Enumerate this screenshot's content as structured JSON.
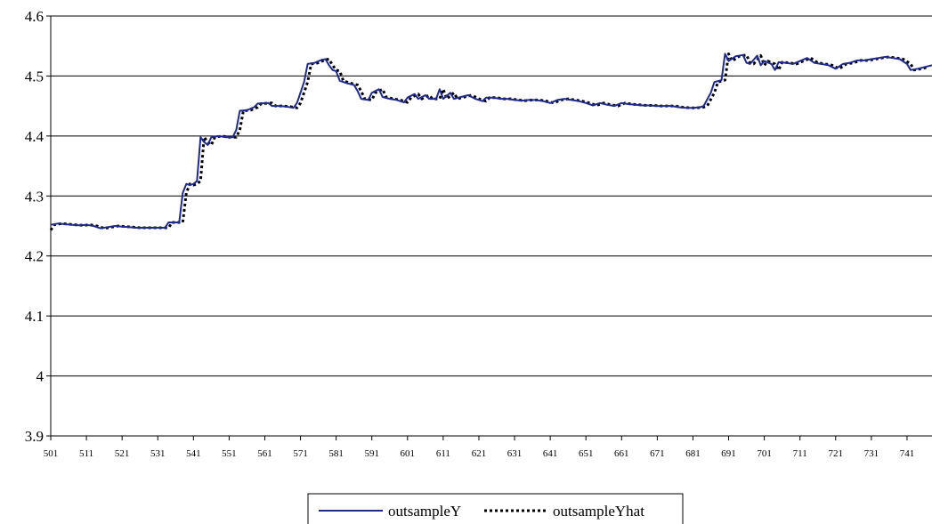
{
  "chart_data": {
    "type": "line",
    "title": "",
    "xlabel": "",
    "ylabel": "",
    "xlim": [
      501,
      748
    ],
    "ylim": [
      3.9,
      4.6
    ],
    "y_ticks": [
      "3.9",
      "4",
      "4.1",
      "4.2",
      "4.3",
      "4.4",
      "4.5",
      "4.6"
    ],
    "x_tick_labels": [
      "501",
      "511",
      "521",
      "531",
      "541",
      "551",
      "561",
      "571",
      "581",
      "591",
      "601",
      "611",
      "621",
      "631",
      "641",
      "651",
      "661",
      "671",
      "681",
      "691",
      "701",
      "711",
      "721",
      "731",
      "741"
    ],
    "grid": "horizontal",
    "legend_position": "bottom",
    "colors": {
      "outsampleY": "#1f2a8c",
      "outsampleYhat": "#000000"
    },
    "series": [
      {
        "name": "outsampleY",
        "style": "solid",
        "points": [
          [
            501,
            4.252
          ],
          [
            503,
            4.254
          ],
          [
            505,
            4.253
          ],
          [
            507,
            4.252
          ],
          [
            509,
            4.251
          ],
          [
            511,
            4.252
          ],
          [
            513,
            4.25
          ],
          [
            515,
            4.246
          ],
          [
            517,
            4.248
          ],
          [
            519,
            4.25
          ],
          [
            521,
            4.249
          ],
          [
            523,
            4.248
          ],
          [
            525,
            4.247
          ],
          [
            527,
            4.247
          ],
          [
            529,
            4.247
          ],
          [
            531,
            4.247
          ],
          [
            533,
            4.247
          ],
          [
            534,
            4.256
          ],
          [
            537,
            4.256
          ],
          [
            538,
            4.305
          ],
          [
            539,
            4.32
          ],
          [
            540,
            4.318
          ],
          [
            541,
            4.32
          ],
          [
            542,
            4.325
          ],
          [
            543,
            4.398
          ],
          [
            544,
            4.39
          ],
          [
            545,
            4.385
          ],
          [
            546,
            4.398
          ],
          [
            548,
            4.4
          ],
          [
            550,
            4.398
          ],
          [
            552,
            4.398
          ],
          [
            553,
            4.41
          ],
          [
            554,
            4.442
          ],
          [
            556,
            4.443
          ],
          [
            558,
            4.448
          ],
          [
            559,
            4.454
          ],
          [
            562,
            4.455
          ],
          [
            563,
            4.45
          ],
          [
            565,
            4.45
          ],
          [
            567,
            4.449
          ],
          [
            569,
            4.447
          ],
          [
            570,
            4.455
          ],
          [
            572,
            4.49
          ],
          [
            573,
            4.52
          ],
          [
            575,
            4.522
          ],
          [
            577,
            4.527
          ],
          [
            578,
            4.528
          ],
          [
            579,
            4.518
          ],
          [
            580,
            4.51
          ],
          [
            581,
            4.508
          ],
          [
            582,
            4.492
          ],
          [
            584,
            4.488
          ],
          [
            586,
            4.485
          ],
          [
            587,
            4.475
          ],
          [
            588,
            4.462
          ],
          [
            590,
            4.46
          ],
          [
            591,
            4.472
          ],
          [
            593,
            4.478
          ],
          [
            594,
            4.465
          ],
          [
            596,
            4.462
          ],
          [
            598,
            4.46
          ],
          [
            600,
            4.456
          ],
          [
            601,
            4.464
          ],
          [
            603,
            4.47
          ],
          [
            604,
            4.462
          ],
          [
            606,
            4.468
          ],
          [
            607,
            4.462
          ],
          [
            609,
            4.462
          ],
          [
            610,
            4.478
          ],
          [
            611,
            4.462
          ],
          [
            613,
            4.472
          ],
          [
            614,
            4.462
          ],
          [
            616,
            4.465
          ],
          [
            618,
            4.468
          ],
          [
            620,
            4.462
          ],
          [
            622,
            4.458
          ],
          [
            623,
            4.464
          ],
          [
            625,
            4.464
          ],
          [
            627,
            4.462
          ],
          [
            629,
            4.462
          ],
          [
            631,
            4.46
          ],
          [
            633,
            4.459
          ],
          [
            635,
            4.46
          ],
          [
            637,
            4.46
          ],
          [
            639,
            4.458
          ],
          [
            641,
            4.455
          ],
          [
            643,
            4.46
          ],
          [
            645,
            4.462
          ],
          [
            647,
            4.46
          ],
          [
            649,
            4.458
          ],
          [
            651,
            4.455
          ],
          [
            653,
            4.451
          ],
          [
            655,
            4.455
          ],
          [
            657,
            4.452
          ],
          [
            659,
            4.45
          ],
          [
            661,
            4.455
          ],
          [
            663,
            4.453
          ],
          [
            665,
            4.452
          ],
          [
            667,
            4.451
          ],
          [
            669,
            4.451
          ],
          [
            671,
            4.45
          ],
          [
            673,
            4.45
          ],
          [
            675,
            4.45
          ],
          [
            677,
            4.448
          ],
          [
            679,
            4.447
          ],
          [
            681,
            4.447
          ],
          [
            683,
            4.448
          ],
          [
            684,
            4.45
          ],
          [
            686,
            4.472
          ],
          [
            687,
            4.49
          ],
          [
            689,
            4.493
          ],
          [
            690,
            4.537
          ],
          [
            691,
            4.525
          ],
          [
            693,
            4.533
          ],
          [
            695,
            4.535
          ],
          [
            696,
            4.522
          ],
          [
            697,
            4.52
          ],
          [
            699,
            4.534
          ],
          [
            700,
            4.518
          ],
          [
            701,
            4.525
          ],
          [
            703,
            4.52
          ],
          [
            704,
            4.51
          ],
          [
            705,
            4.523
          ],
          [
            707,
            4.522
          ],
          [
            709,
            4.52
          ],
          [
            711,
            4.525
          ],
          [
            713,
            4.53
          ],
          [
            715,
            4.522
          ],
          [
            717,
            4.52
          ],
          [
            719,
            4.518
          ],
          [
            721,
            4.512
          ],
          [
            723,
            4.52
          ],
          [
            725,
            4.522
          ],
          [
            727,
            4.526
          ],
          [
            729,
            4.526
          ],
          [
            731,
            4.528
          ],
          [
            733,
            4.53
          ],
          [
            735,
            4.532
          ],
          [
            737,
            4.53
          ],
          [
            739,
            4.528
          ],
          [
            741,
            4.52
          ],
          [
            742,
            4.51
          ],
          [
            744,
            4.512
          ],
          [
            746,
            4.515
          ],
          [
            748,
            4.518
          ]
        ]
      },
      {
        "name": "outsampleYhat",
        "style": "dotted",
        "points": [
          [
            501,
            4.243
          ],
          [
            502,
            4.252
          ],
          [
            504,
            4.254
          ],
          [
            506,
            4.253
          ],
          [
            508,
            4.252
          ],
          [
            510,
            4.251
          ],
          [
            512,
            4.252
          ],
          [
            514,
            4.25
          ],
          [
            516,
            4.246
          ],
          [
            518,
            4.248
          ],
          [
            520,
            4.25
          ],
          [
            522,
            4.249
          ],
          [
            524,
            4.248
          ],
          [
            526,
            4.247
          ],
          [
            528,
            4.247
          ],
          [
            530,
            4.247
          ],
          [
            532,
            4.247
          ],
          [
            534,
            4.247
          ],
          [
            535,
            4.256
          ],
          [
            538,
            4.256
          ],
          [
            539,
            4.305
          ],
          [
            540,
            4.32
          ],
          [
            541,
            4.318
          ],
          [
            542,
            4.32
          ],
          [
            543,
            4.325
          ],
          [
            544,
            4.398
          ],
          [
            545,
            4.39
          ],
          [
            546,
            4.385
          ],
          [
            547,
            4.398
          ],
          [
            549,
            4.4
          ],
          [
            551,
            4.398
          ],
          [
            553,
            4.398
          ],
          [
            554,
            4.41
          ],
          [
            555,
            4.442
          ],
          [
            557,
            4.443
          ],
          [
            559,
            4.448
          ],
          [
            560,
            4.454
          ],
          [
            563,
            4.455
          ],
          [
            564,
            4.45
          ],
          [
            566,
            4.45
          ],
          [
            568,
            4.449
          ],
          [
            570,
            4.447
          ],
          [
            571,
            4.455
          ],
          [
            573,
            4.49
          ],
          [
            574,
            4.52
          ],
          [
            576,
            4.522
          ],
          [
            578,
            4.527
          ],
          [
            579,
            4.528
          ],
          [
            580,
            4.518
          ],
          [
            581,
            4.51
          ],
          [
            582,
            4.508
          ],
          [
            583,
            4.492
          ],
          [
            585,
            4.488
          ],
          [
            587,
            4.485
          ],
          [
            588,
            4.475
          ],
          [
            589,
            4.462
          ],
          [
            591,
            4.46
          ],
          [
            592,
            4.472
          ],
          [
            594,
            4.478
          ],
          [
            595,
            4.465
          ],
          [
            597,
            4.462
          ],
          [
            599,
            4.46
          ],
          [
            601,
            4.456
          ],
          [
            602,
            4.464
          ],
          [
            604,
            4.47
          ],
          [
            605,
            4.462
          ],
          [
            607,
            4.468
          ],
          [
            608,
            4.462
          ],
          [
            610,
            4.462
          ],
          [
            611,
            4.478
          ],
          [
            612,
            4.462
          ],
          [
            614,
            4.472
          ],
          [
            615,
            4.462
          ],
          [
            617,
            4.465
          ],
          [
            619,
            4.468
          ],
          [
            621,
            4.462
          ],
          [
            623,
            4.458
          ],
          [
            624,
            4.464
          ],
          [
            626,
            4.464
          ],
          [
            628,
            4.462
          ],
          [
            630,
            4.462
          ],
          [
            632,
            4.46
          ],
          [
            634,
            4.459
          ],
          [
            636,
            4.46
          ],
          [
            638,
            4.46
          ],
          [
            640,
            4.458
          ],
          [
            642,
            4.455
          ],
          [
            644,
            4.46
          ],
          [
            646,
            4.462
          ],
          [
            648,
            4.46
          ],
          [
            650,
            4.458
          ],
          [
            652,
            4.455
          ],
          [
            654,
            4.451
          ],
          [
            656,
            4.455
          ],
          [
            658,
            4.452
          ],
          [
            660,
            4.45
          ],
          [
            662,
            4.455
          ],
          [
            664,
            4.453
          ],
          [
            666,
            4.452
          ],
          [
            668,
            4.451
          ],
          [
            670,
            4.451
          ],
          [
            672,
            4.45
          ],
          [
            674,
            4.45
          ],
          [
            676,
            4.45
          ],
          [
            678,
            4.448
          ],
          [
            680,
            4.447
          ],
          [
            682,
            4.447
          ],
          [
            684,
            4.448
          ],
          [
            685,
            4.45
          ],
          [
            687,
            4.472
          ],
          [
            688,
            4.49
          ],
          [
            690,
            4.493
          ],
          [
            691,
            4.537
          ],
          [
            692,
            4.525
          ],
          [
            694,
            4.533
          ],
          [
            696,
            4.535
          ],
          [
            697,
            4.522
          ],
          [
            698,
            4.52
          ],
          [
            700,
            4.534
          ],
          [
            701,
            4.518
          ],
          [
            702,
            4.525
          ],
          [
            704,
            4.52
          ],
          [
            705,
            4.51
          ],
          [
            706,
            4.523
          ],
          [
            708,
            4.522
          ],
          [
            710,
            4.52
          ],
          [
            712,
            4.525
          ],
          [
            714,
            4.53
          ],
          [
            716,
            4.522
          ],
          [
            718,
            4.52
          ],
          [
            720,
            4.518
          ],
          [
            722,
            4.512
          ],
          [
            724,
            4.52
          ],
          [
            726,
            4.522
          ],
          [
            728,
            4.526
          ],
          [
            730,
            4.526
          ],
          [
            732,
            4.528
          ],
          [
            734,
            4.53
          ],
          [
            736,
            4.532
          ],
          [
            738,
            4.53
          ],
          [
            740,
            4.528
          ],
          [
            742,
            4.52
          ],
          [
            743,
            4.51
          ],
          [
            745,
            4.512
          ],
          [
            747,
            4.515
          ]
        ]
      }
    ]
  }
}
